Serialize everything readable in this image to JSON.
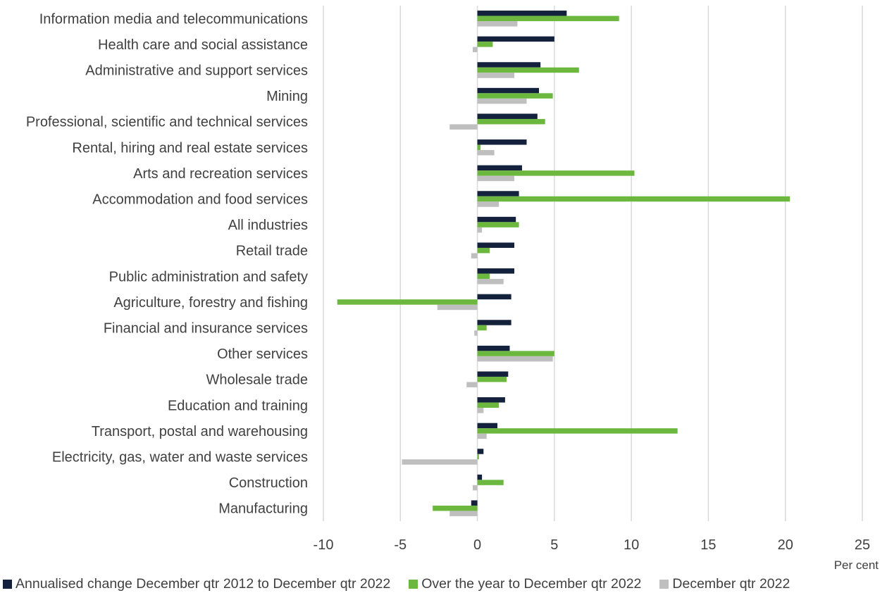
{
  "chart_data": {
    "type": "bar",
    "orientation": "horizontal",
    "categories": [
      "Information media and telecommunications",
      "Health care and social assistance",
      "Administrative and support services",
      "Mining",
      "Professional, scientific and technical services",
      "Rental, hiring and real estate services",
      "Arts and recreation services",
      "Accommodation and food services",
      "All industries",
      "Retail trade",
      "Public administration and safety",
      "Agriculture, forestry and fishing",
      "Financial and insurance services",
      "Other services",
      "Wholesale trade",
      "Education and training",
      "Transport, postal and warehousing",
      "Electricity, gas, water and waste services",
      "Construction",
      "Manufacturing"
    ],
    "series": [
      {
        "name": "Annualised change December qtr 2012 to December qtr 2022",
        "color": "#13213d",
        "values": [
          5.8,
          5.0,
          4.1,
          4.0,
          3.9,
          3.2,
          2.9,
          2.7,
          2.5,
          2.4,
          2.4,
          2.2,
          2.2,
          2.1,
          2.0,
          1.8,
          1.3,
          0.4,
          0.3,
          -0.4
        ]
      },
      {
        "name": "Over the year to December qtr 2022",
        "color": "#6cb83f",
        "values": [
          9.2,
          1.0,
          6.6,
          4.9,
          4.4,
          0.2,
          10.2,
          20.3,
          2.7,
          0.8,
          0.8,
          -9.1,
          0.6,
          5.0,
          1.9,
          1.4,
          13.0,
          0.1,
          1.7,
          -2.9
        ]
      },
      {
        "name": "December qtr 2022",
        "color": "#bfbfbf",
        "values": [
          2.6,
          -0.3,
          2.4,
          3.2,
          -1.8,
          1.1,
          2.4,
          1.4,
          0.3,
          -0.4,
          1.7,
          -2.6,
          -0.2,
          4.9,
          -0.7,
          0.4,
          0.6,
          -4.9,
          -0.3,
          -1.8
        ]
      }
    ],
    "xlim": [
      -10,
      25
    ],
    "xticks": [
      "-10",
      "-5",
      "0",
      "5",
      "10",
      "15",
      "20",
      "25"
    ],
    "xlabel": "Per cent",
    "grid": "vertical",
    "legend_position": "bottom"
  }
}
